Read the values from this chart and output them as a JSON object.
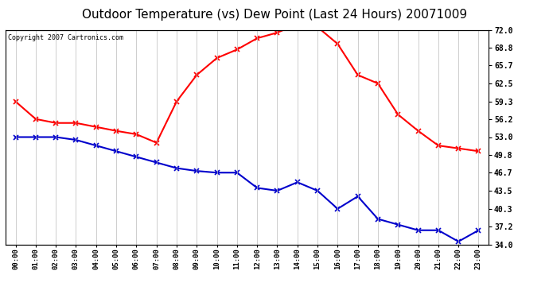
{
  "title": "Outdoor Temperature (vs) Dew Point (Last 24 Hours) 20071009",
  "copyright": "Copyright 2007 Cartronics.com",
  "x_labels": [
    "00:00",
    "01:00",
    "02:00",
    "03:00",
    "04:00",
    "05:00",
    "06:00",
    "07:00",
    "08:00",
    "09:00",
    "10:00",
    "11:00",
    "12:00",
    "13:00",
    "14:00",
    "15:00",
    "16:00",
    "17:00",
    "18:00",
    "19:00",
    "20:00",
    "21:00",
    "22:00",
    "23:00"
  ],
  "temp_data": [
    59.3,
    56.2,
    55.5,
    55.5,
    54.8,
    54.1,
    53.5,
    52.0,
    59.3,
    64.0,
    67.0,
    68.5,
    70.5,
    71.5,
    73.0,
    72.5,
    69.5,
    64.0,
    62.5,
    57.0,
    54.1,
    51.5,
    51.0,
    50.5
  ],
  "dew_data": [
    53.0,
    53.0,
    53.0,
    52.5,
    51.5,
    50.5,
    49.5,
    48.5,
    47.5,
    47.0,
    46.7,
    46.7,
    44.0,
    43.5,
    45.0,
    43.5,
    40.3,
    42.5,
    38.5,
    37.5,
    36.5,
    36.5,
    34.5,
    36.5
  ],
  "temp_color": "#ff0000",
  "dew_color": "#0000cc",
  "bg_color": "#ffffff",
  "plot_bg_color": "#ffffff",
  "grid_color": "#bbbbbb",
  "y_ticks": [
    34.0,
    37.2,
    40.3,
    43.5,
    46.7,
    49.8,
    53.0,
    56.2,
    59.3,
    62.5,
    65.7,
    68.8,
    72.0
  ],
  "ylim": [
    34.0,
    72.0
  ],
  "title_fontsize": 11,
  "copyright_fontsize": 6,
  "marker": "x",
  "marker_size": 4,
  "line_width": 1.5
}
